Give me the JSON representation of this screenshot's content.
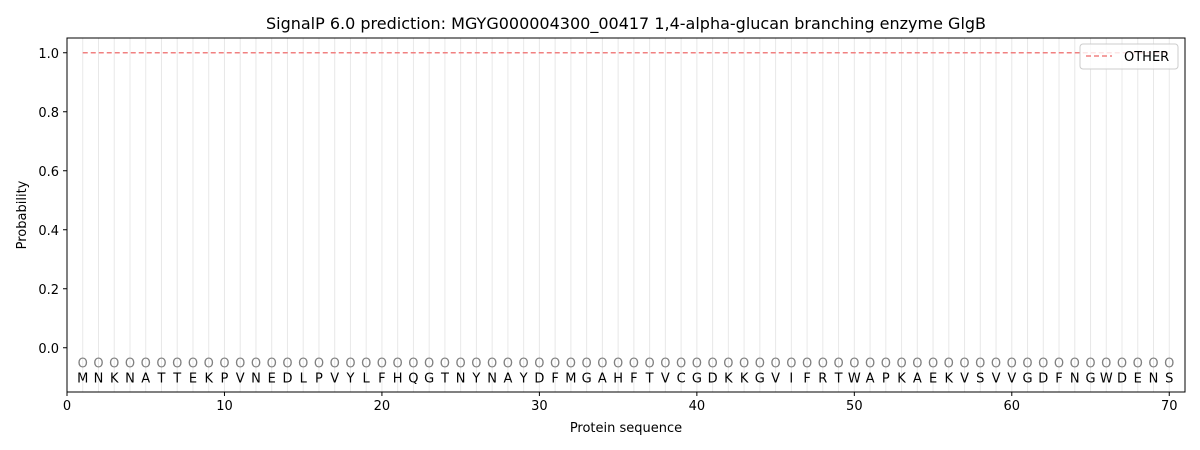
{
  "chart_data": {
    "type": "line",
    "title": "SignalP 6.0 prediction: MGYG000004300_00417 1,4-alpha-glucan branching enzyme GlgB",
    "xlabel": "Protein sequence",
    "ylabel": "Probability",
    "xlim": [
      0,
      71
    ],
    "ylim": [
      -0.15,
      1.05
    ],
    "xticks": [
      0,
      10,
      20,
      30,
      40,
      50,
      60,
      70
    ],
    "yticks": [
      0.0,
      0.2,
      0.4,
      0.6,
      0.8,
      1.0
    ],
    "ytick_labels": [
      "0.0",
      "0.2",
      "0.4",
      "0.6",
      "0.8",
      "1.0"
    ],
    "legend_position": "top-right",
    "series": [
      {
        "name": "OTHER",
        "color": "#f08080",
        "style": "dashed",
        "x_start": 1,
        "x_end": 70,
        "value": 1.0
      }
    ],
    "sequence": [
      "M",
      "N",
      "K",
      "N",
      "A",
      "T",
      "T",
      "E",
      "K",
      "P",
      "V",
      "N",
      "E",
      "D",
      "L",
      "P",
      "V",
      "Y",
      "L",
      "F",
      "H",
      "Q",
      "G",
      "T",
      "N",
      "Y",
      "N",
      "A",
      "Y",
      "D",
      "F",
      "M",
      "G",
      "A",
      "H",
      "F",
      "T",
      "V",
      "C",
      "G",
      "D",
      "K",
      "K",
      "G",
      "V",
      "I",
      "F",
      "R",
      "T",
      "W",
      "A",
      "P",
      "K",
      "A",
      "E",
      "K",
      "V",
      "S",
      "V",
      "V",
      "G",
      "D",
      "F",
      "N",
      "G",
      "W",
      "D",
      "E",
      "N",
      "S"
    ],
    "predicted_label": "O",
    "label_color": "#808080"
  }
}
